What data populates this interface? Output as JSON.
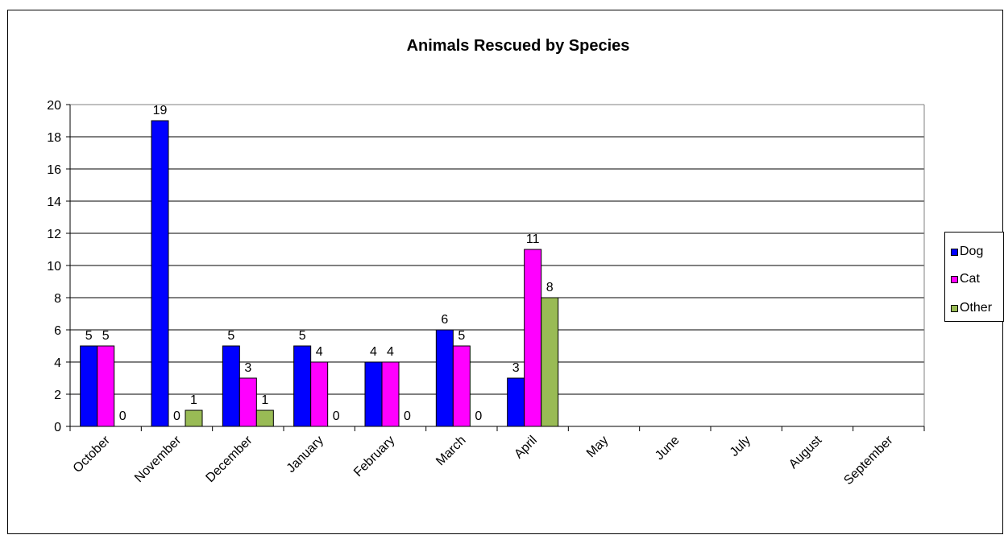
{
  "chart_data": {
    "type": "bar",
    "title": "Animals Rescued by Species",
    "xlabel": "",
    "ylabel": "",
    "categories": [
      "October",
      "November",
      "December",
      "January",
      "February",
      "March",
      "April",
      "May",
      "June",
      "July",
      "August",
      "September"
    ],
    "series": [
      {
        "name": "Dog",
        "color": "#0000FF",
        "values": [
          5,
          19,
          5,
          5,
          4,
          6,
          3,
          null,
          null,
          null,
          null,
          null
        ]
      },
      {
        "name": "Cat",
        "color": "#FF00FF",
        "values": [
          5,
          0,
          3,
          4,
          4,
          5,
          11,
          null,
          null,
          null,
          null,
          null
        ]
      },
      {
        "name": "Other",
        "color": "#99BB55",
        "values": [
          0,
          1,
          1,
          0,
          0,
          0,
          8,
          null,
          null,
          null,
          null,
          null
        ]
      }
    ],
    "ylim": [
      0,
      20
    ],
    "yticks": [
      0,
      2,
      4,
      6,
      8,
      10,
      12,
      14,
      16,
      18,
      20
    ],
    "grid": true,
    "data_labels": true,
    "legend_position": "right"
  }
}
